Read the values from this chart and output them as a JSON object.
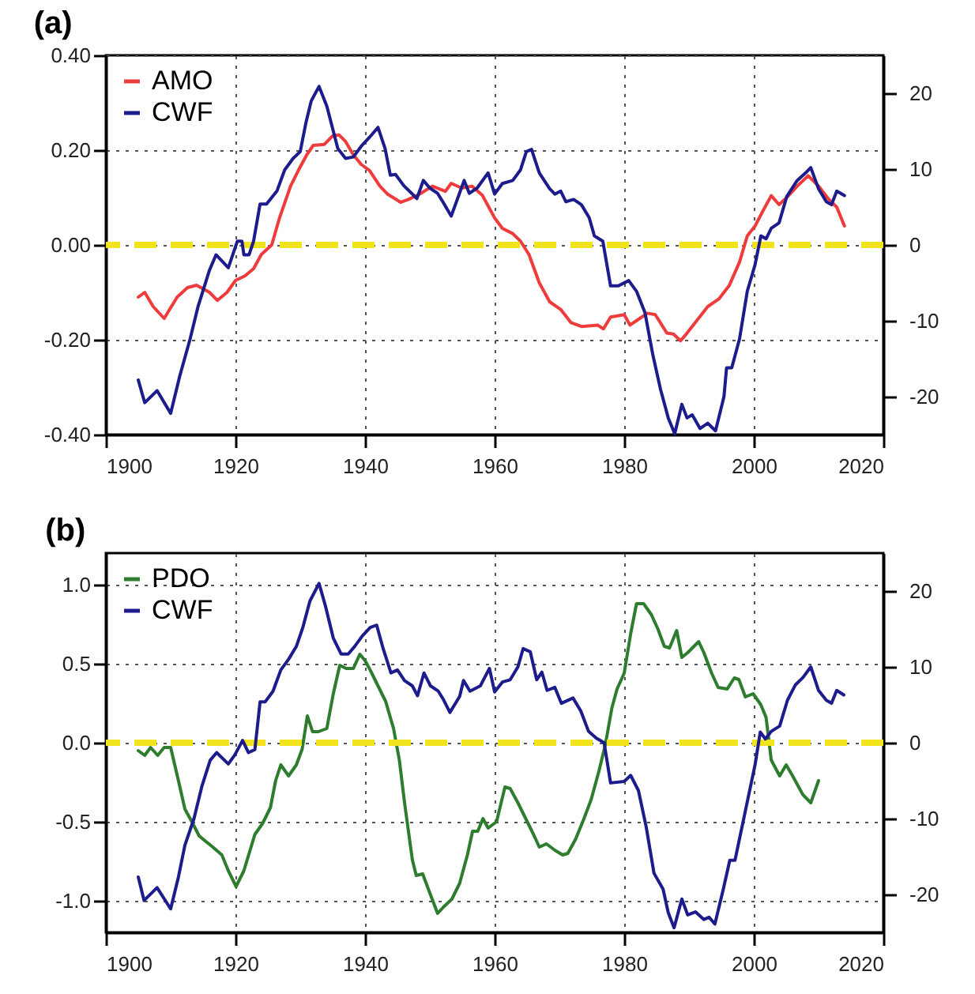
{
  "chart_data": [
    {
      "type": "line",
      "title": "(a)",
      "xlim": [
        1900,
        2020
      ],
      "xticks": [
        1900,
        1920,
        1940,
        1960,
        1980,
        2000,
        2020
      ],
      "ylim": [
        -0.4,
        0.4
      ],
      "yticks": [
        {
          "value": -0.4,
          "label": "-0.40"
        },
        {
          "value": -0.2,
          "label": "-0.20"
        },
        {
          "value": 0,
          "label": "0.00"
        },
        {
          "value": 0.2,
          "label": "0.20"
        },
        {
          "value": 0.4,
          "label": "0.40"
        }
      ],
      "y2lim": [
        -25,
        25
      ],
      "y2ticks": [
        -20,
        -10,
        0,
        10,
        20
      ],
      "grid": true,
      "legend": "top left",
      "ref_lines": [
        {
          "axis": "y",
          "value": 0,
          "color": "#f2e41c",
          "line_style": "dashed"
        }
      ],
      "series": [
        {
          "name": "AMO",
          "color": "#ee3b3b",
          "x": [
            1905,
            1906,
            1907.3,
            1909,
            1911,
            1912.6,
            1914,
            1916,
            1917.2,
            1918.7,
            1920,
            1921.5,
            1922.8,
            1924,
            1925.6,
            1926.8,
            1928.5,
            1929.7,
            1931,
            1932,
            1933.7,
            1935,
            1936,
            1937,
            1938.2,
            1939.4,
            1940.7,
            1942.3,
            1943.5,
            1945.5,
            1946.7,
            1948.4,
            1950.4,
            1952.4,
            1953.3,
            1954.9,
            1956.5,
            1958.1,
            1960,
            1961.2,
            1962.8,
            1964,
            1965.3,
            1966.9,
            1968.5,
            1970.2,
            1971.8,
            1973.4,
            1975.9,
            1976.8,
            1977.9,
            1980,
            1980.9,
            1982.4,
            1983.6,
            1984.8,
            1986.6,
            1987.6,
            1988.7,
            1989.7,
            1991.3,
            1992.9,
            1994.6,
            1996.2,
            1997.8,
            1999,
            2000.2,
            2001.5,
            2002.7,
            2003.9,
            2005.1,
            2006.7,
            2008.4,
            2010,
            2011.6,
            2012.8,
            2014
          ],
          "values": [
            -0.11,
            -0.1,
            -0.13,
            -0.155,
            -0.11,
            -0.09,
            -0.085,
            -0.1,
            -0.117,
            -0.1,
            -0.075,
            -0.065,
            -0.05,
            -0.02,
            0.0,
            0.057,
            0.124,
            0.157,
            0.19,
            0.21,
            0.212,
            0.23,
            0.232,
            0.218,
            0.19,
            0.17,
            0.157,
            0.124,
            0.107,
            0.09,
            0.096,
            0.107,
            0.124,
            0.113,
            0.13,
            0.12,
            0.124,
            0.105,
            0.057,
            0.035,
            0.024,
            0.008,
            -0.02,
            -0.08,
            -0.12,
            -0.136,
            -0.164,
            -0.172,
            -0.169,
            -0.177,
            -0.152,
            -0.147,
            -0.169,
            -0.155,
            -0.144,
            -0.147,
            -0.186,
            -0.188,
            -0.202,
            -0.186,
            -0.158,
            -0.13,
            -0.114,
            -0.086,
            -0.036,
            0.019,
            0.04,
            0.074,
            0.104,
            0.085,
            0.1,
            0.124,
            0.146,
            0.124,
            0.096,
            0.08,
            0.04
          ]
        },
        {
          "name": "CWF",
          "color": "#1c1c8c",
          "axis": "y2",
          "x": [
            1905,
            1906,
            1907.9,
            1910,
            1911.4,
            1913,
            1914.2,
            1916,
            1917,
            1918.9,
            1920.3,
            1921,
            1921.3,
            1922.1,
            1922.8,
            1923.8,
            1924.8,
            1926.4,
            1927.6,
            1928.9,
            1930,
            1930.9,
            1931.7,
            1932.9,
            1934.1,
            1935.8,
            1937,
            1938.2,
            1939.4,
            1940.7,
            1942,
            1943.1,
            1943.9,
            1944.7,
            1946,
            1947.2,
            1948,
            1949,
            1950,
            1951.2,
            1952,
            1953.3,
            1955.3,
            1956.1,
            1957.3,
            1959,
            1960,
            1961.2,
            1962.8,
            1964,
            1964.9,
            1965.7,
            1966.9,
            1968.5,
            1969.3,
            1970.2,
            1971,
            1972.2,
            1973.4,
            1974.6,
            1975.4,
            1976.7,
            1977.9,
            1979.1,
            1980.7,
            1981.9,
            1983.2,
            1984.4,
            1985.6,
            1986.8,
            1987.8,
            1988.9,
            1989.7,
            1990.5,
            1991.7,
            1992.9,
            1994.1,
            1995.4,
            1995.8,
            1996.6,
            1997.8,
            1999,
            2000.2,
            2001.1,
            2001.9,
            2002.7,
            2003.9,
            2005.1,
            2006.7,
            2008,
            2008.8,
            2010,
            2011.2,
            2012,
            2012.8,
            2014
          ],
          "values": [
            -17.8,
            -20.8,
            -19.2,
            -22.2,
            -17.3,
            -12.4,
            -8.2,
            -3.3,
            -1.3,
            -3,
            0.5,
            0.5,
            -1.3,
            -1.3,
            0.5,
            5.4,
            5.4,
            7.1,
            9.9,
            11.4,
            12.3,
            16.2,
            19,
            20.9,
            18.3,
            12.7,
            11.4,
            11.6,
            13,
            14.2,
            15.5,
            12.7,
            9.2,
            9.3,
            7.8,
            6.8,
            6.1,
            8.5,
            7.5,
            6.8,
            5.7,
            3.8,
            8.5,
            6.8,
            7.5,
            9.5,
            6.7,
            8.1,
            8.5,
            9.9,
            12.3,
            12.6,
            9.5,
            7.4,
            6.7,
            7.1,
            5.7,
            6,
            5.3,
            3.6,
            1.2,
            0.5,
            -5.4,
            -5.4,
            -4.7,
            -6.1,
            -8.9,
            -14.4,
            -19,
            -22.8,
            -24.9,
            -21,
            -22.8,
            -22.4,
            -24.2,
            -23.5,
            -24.5,
            -20,
            -16.2,
            -16.2,
            -12.4,
            -6.1,
            -2.6,
            1.2,
            0.8,
            2.2,
            2.9,
            6.4,
            8.5,
            9.5,
            10.2,
            7.4,
            5.7,
            5.3,
            7.1,
            6.5
          ]
        }
      ]
    },
    {
      "type": "line",
      "title": "(b)",
      "xlim": [
        1900,
        2020
      ],
      "xticks": [
        1900,
        1920,
        1940,
        1960,
        1980,
        2000,
        2020
      ],
      "ylim": [
        -1.2,
        1.2
      ],
      "yticks": [
        {
          "value": -1,
          "label": "-1.0"
        },
        {
          "value": -0.5,
          "label": "-0.5"
        },
        {
          "value": 0,
          "label": "0.0"
        },
        {
          "value": 0.5,
          "label": "0.5"
        },
        {
          "value": 1,
          "label": "1.0"
        }
      ],
      "y2lim": [
        -25,
        25
      ],
      "y2ticks": [
        -20,
        -10,
        0,
        10,
        20
      ],
      "grid": true,
      "legend": "top left",
      "ref_lines": [
        {
          "axis": "y",
          "value": 0,
          "color": "#f2e41c",
          "line_style": "dashed"
        }
      ],
      "series": [
        {
          "name": "PDO",
          "color": "#2e7d2e",
          "x": [
            1905,
            1906,
            1906.9,
            1908,
            1909,
            1910,
            1911.2,
            1912.2,
            1913.4,
            1914.4,
            1916.5,
            1917.9,
            1918.9,
            1920.1,
            1921.3,
            1923,
            1924.2,
            1925.4,
            1926.2,
            1927,
            1928.2,
            1929.4,
            1930.3,
            1931.1,
            1931.9,
            1932.8,
            1934.1,
            1935.1,
            1936.1,
            1937.1,
            1938.2,
            1939.2,
            1940,
            1940.8,
            1942,
            1943.2,
            1944.4,
            1945.3,
            1946.1,
            1947.3,
            1947.9,
            1948.9,
            1949.9,
            1951.2,
            1952.1,
            1953.4,
            1954.6,
            1955.8,
            1956.6,
            1957.4,
            1958.2,
            1959,
            1960.3,
            1961.6,
            1962.4,
            1963.6,
            1964.8,
            1966,
            1966.9,
            1968,
            1969.3,
            1970.5,
            1971.3,
            1972.5,
            1973.7,
            1974.9,
            1976.1,
            1977.1,
            1978.1,
            1978.9,
            1980,
            1981,
            1981.9,
            1983,
            1984.2,
            1985.2,
            1986.2,
            1987,
            1988.1,
            1988.9,
            1989.8,
            1991.5,
            1992.3,
            1993.5,
            1994.5,
            1995.9,
            1997,
            1997.7,
            1998.7,
            1999.9,
            2001.1,
            2001.9,
            2002.7,
            2004,
            2005,
            2006,
            2007.6,
            2008.8,
            2010
          ],
          "values": [
            -0.05,
            -0.08,
            -0.03,
            -0.08,
            -0.03,
            -0.03,
            -0.24,
            -0.42,
            -0.51,
            -0.59,
            -0.66,
            -0.71,
            -0.81,
            -0.91,
            -0.81,
            -0.58,
            -0.51,
            -0.41,
            -0.24,
            -0.14,
            -0.21,
            -0.14,
            -0.04,
            0.17,
            0.07,
            0.07,
            0.09,
            0.31,
            0.49,
            0.47,
            0.47,
            0.56,
            0.52,
            0.46,
            0.36,
            0.26,
            0.09,
            -0.11,
            -0.38,
            -0.74,
            -0.84,
            -0.83,
            -0.94,
            -1.08,
            -1.04,
            -0.99,
            -0.89,
            -0.71,
            -0.56,
            -0.56,
            -0.48,
            -0.54,
            -0.5,
            -0.28,
            -0.29,
            -0.38,
            -0.48,
            -0.58,
            -0.66,
            -0.64,
            -0.68,
            -0.71,
            -0.7,
            -0.61,
            -0.49,
            -0.36,
            -0.18,
            -0.01,
            0.22,
            0.34,
            0.44,
            0.69,
            0.88,
            0.88,
            0.81,
            0.72,
            0.61,
            0.6,
            0.71,
            0.54,
            0.57,
            0.64,
            0.57,
            0.44,
            0.35,
            0.34,
            0.41,
            0.4,
            0.29,
            0.31,
            0.24,
            0.16,
            -0.11,
            -0.21,
            -0.14,
            -0.21,
            -0.33,
            -0.38,
            -0.24
          ]
        },
        {
          "name": "CWF",
          "color": "#1c1c8c",
          "axis": "y2",
          "x": [
            1905,
            1905.9,
            1907.9,
            1910,
            1911.2,
            1912.2,
            1913.6,
            1914.8,
            1916.1,
            1917.1,
            1918.9,
            1919.9,
            1921.1,
            1922,
            1923,
            1923.8,
            1924.6,
            1925.8,
            1927,
            1928.2,
            1929.4,
            1930.4,
            1931.5,
            1932.9,
            1933.9,
            1935.1,
            1936.3,
            1937.4,
            1938.4,
            1939.6,
            1940.8,
            1941.8,
            1942.8,
            1944,
            1945,
            1946.1,
            1947.3,
            1948.1,
            1949.1,
            1950.1,
            1951.3,
            1952.1,
            1953.1,
            1954.6,
            1955.2,
            1956.2,
            1957.8,
            1959.2,
            1960,
            1961.2,
            1962.4,
            1963.6,
            1964.4,
            1965.5,
            1966.5,
            1967.3,
            1968.1,
            1969.3,
            1970.3,
            1972.1,
            1973.3,
            1974.5,
            1975.7,
            1976.9,
            1977.9,
            1980,
            1981,
            1982.2,
            1983.4,
            1984.6,
            1986,
            1986.8,
            1987.7,
            1988.9,
            1989.8,
            1991,
            1992.3,
            1993.1,
            1994,
            1995.3,
            1996.3,
            1997.1,
            1998.7,
            2000.2,
            2001,
            2001.8,
            2002.7,
            2004,
            2005.2,
            2006.4,
            2007.6,
            2008.8,
            2010,
            2011.2,
            2012,
            2012.8,
            2013.9
          ],
          "values": [
            -17.7,
            -20.8,
            -19.1,
            -21.9,
            -17.7,
            -13.5,
            -10,
            -5.8,
            -2.3,
            -1.3,
            -2.8,
            -1.6,
            0.3,
            -1.3,
            -0.9,
            5.4,
            5.4,
            6.8,
            9.6,
            11,
            12.7,
            15.2,
            18.7,
            21,
            18,
            13.8,
            11.7,
            11.7,
            12.7,
            14.1,
            15.2,
            15.5,
            12.4,
            9.2,
            9.6,
            8.2,
            7.5,
            6.2,
            9.2,
            7.5,
            6.8,
            5.7,
            4,
            6.1,
            8.2,
            6.8,
            7.5,
            9.8,
            6.7,
            8,
            8.3,
            10,
            12.4,
            12,
            8.3,
            9.3,
            6.9,
            7.3,
            5.2,
            5.9,
            4.2,
            1.5,
            0.6,
            0,
            -5.3,
            -5.1,
            -4.3,
            -6.3,
            -11.1,
            -17.2,
            -19.3,
            -22.4,
            -24.4,
            -20.6,
            -22.7,
            -22.3,
            -23.3,
            -23,
            -23.9,
            -19.3,
            -15.5,
            -15.5,
            -9,
            -2.9,
            1.4,
            0.5,
            1.5,
            2.2,
            5.6,
            7.6,
            8.6,
            10,
            6.9,
            5.6,
            5.2,
            6.9,
            6.3
          ]
        }
      ]
    }
  ]
}
